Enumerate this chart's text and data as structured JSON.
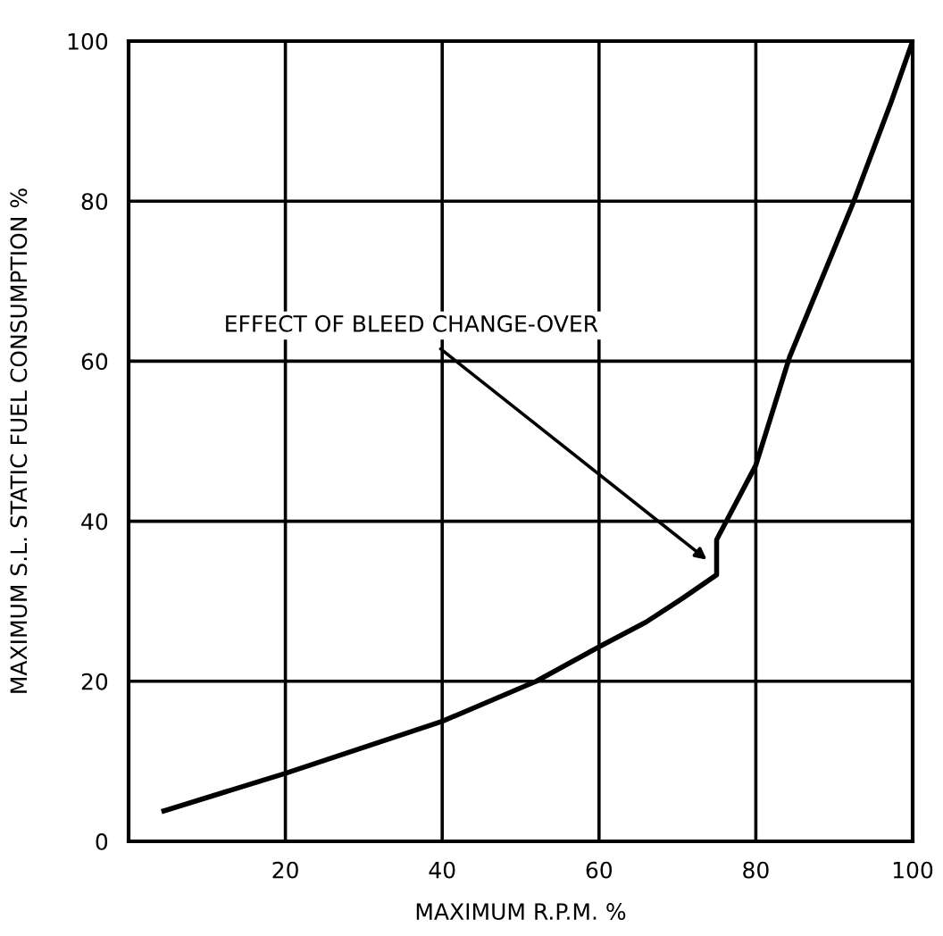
{
  "chart_data": {
    "type": "line",
    "xlabel": "MAXIMUM R.P.M. %",
    "ylabel": "MAXIMUM S.L. STATIC FUEL CONSUMPTION %",
    "xlim": [
      0,
      100
    ],
    "ylim": [
      0,
      100
    ],
    "xticks": [
      20,
      40,
      60,
      80,
      100
    ],
    "yticks": [
      0,
      20,
      40,
      60,
      80,
      100
    ],
    "grid": true,
    "marker": "none",
    "line_style": "solid",
    "series": [
      {
        "color": "#000000",
        "x": [
          4.5,
          20,
          40,
          52,
          60,
          66,
          70.7,
          75,
          75,
          80,
          84.3,
          92.5,
          97.3,
          100
        ],
        "values": [
          3.8,
          8.5,
          15,
          20,
          24.3,
          27.4,
          30.4,
          33.3,
          37.7,
          47,
          60.5,
          80,
          92.5,
          100
        ]
      }
    ],
    "annotations": [
      {
        "text": "EFFECT OF BLEED CHANGE-OVER",
        "x": 74,
        "y": 35
      }
    ]
  }
}
